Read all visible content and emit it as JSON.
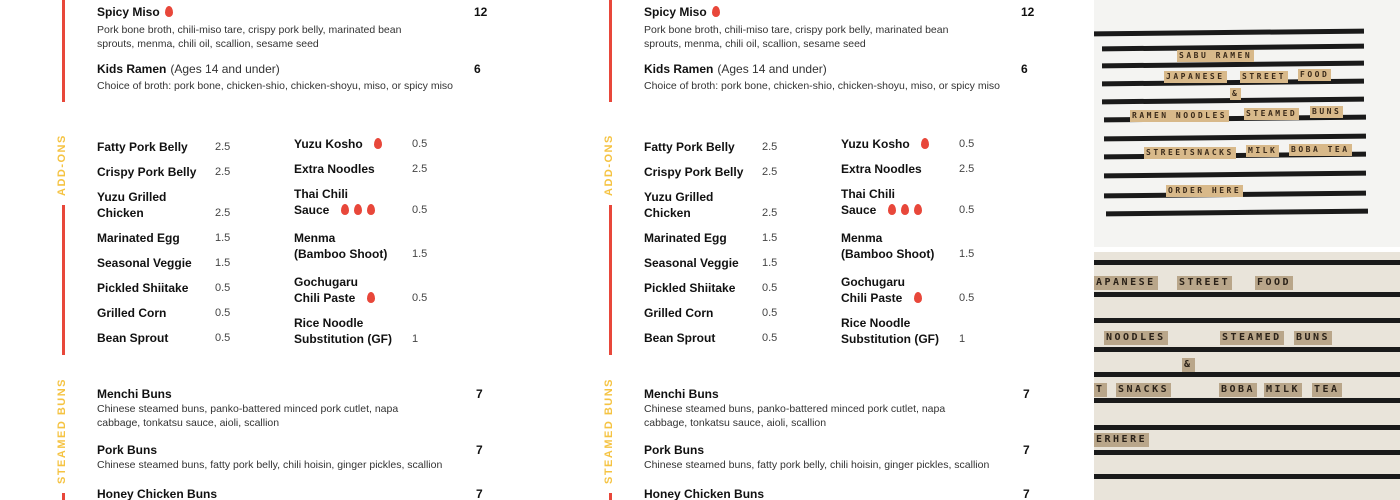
{
  "ramen": [
    {
      "name": "Spicy Miso",
      "spicy": 1,
      "price": "12",
      "desc": "Pork bone broth, chili-miso tare, crispy pork belly, marinated bean sprouts, menma, chili oil, scallion, sesame seed"
    },
    {
      "name": "Kids Ramen",
      "note": "(Ages 14 and under)",
      "price": "6",
      "desc": "Choice of broth: pork bone, chicken-shio, chicken-shoyu, miso, or spicy miso"
    }
  ],
  "addons": {
    "label": "ADD-ONS",
    "left": [
      {
        "name": "Fatty Pork Belly",
        "price": "2.5"
      },
      {
        "name": "Crispy Pork Belly",
        "price": "2.5"
      },
      {
        "name": "Yuzu Grilled Chicken",
        "price": "2.5"
      },
      {
        "name": "Marinated Egg",
        "price": "1.5"
      },
      {
        "name": "Seasonal Veggie",
        "price": "1.5"
      },
      {
        "name": "Pickled Shiitake",
        "price": "0.5"
      },
      {
        "name": "Grilled Corn",
        "price": "0.5"
      },
      {
        "name": "Bean Sprout",
        "price": "0.5"
      }
    ],
    "right": [
      {
        "name": "Yuzu Kosho",
        "spicy": 1,
        "price": "0.5"
      },
      {
        "name": "Extra Noodles",
        "price": "2.5"
      },
      {
        "name": "Thai Chili Sauce",
        "spicy": 3,
        "price": "0.5"
      },
      {
        "name": "Menma (Bamboo Shoot)",
        "price": "1.5"
      },
      {
        "name": "Gochugaru Chili Paste",
        "spicy": 1,
        "price": "0.5"
      },
      {
        "name": "Rice Noodle Substitution (GF)",
        "price": "1"
      }
    ]
  },
  "buns": {
    "label": "STEAMED BUNS",
    "items": [
      {
        "name": "Menchi Buns",
        "price": "7",
        "desc": "Chinese steamed buns, panko-battered minced pork cutlet, napa cabbage, tonkatsu sauce, aioli, scallion"
      },
      {
        "name": "Pork Buns",
        "price": "7",
        "desc": "Chinese steamed buns, fatty pork belly, chili hoisin, ginger pickles, scallion"
      },
      {
        "name": "Honey Chicken Buns",
        "price": "7"
      }
    ]
  },
  "photos": {
    "top": [
      "SABU RAMEN",
      "JAPANESE",
      "STREET",
      "FOOD",
      "&",
      "RAMEN NOODLES",
      "STEAMED",
      "BUNS",
      "STREETSNACKS",
      "MILK",
      "BOBA TEA",
      "ORDER HERE"
    ],
    "bottom": [
      "APANESE",
      "STREET",
      "FOOD",
      "NOODLES",
      "STEAMED",
      "BUNS",
      "&",
      "T",
      "SNACKS",
      "BOBA",
      "MILK",
      "TEA",
      "ERHERE"
    ]
  },
  "colors": {
    "accent_red": "#e8473a",
    "accent_yellow": "#f5c342"
  }
}
